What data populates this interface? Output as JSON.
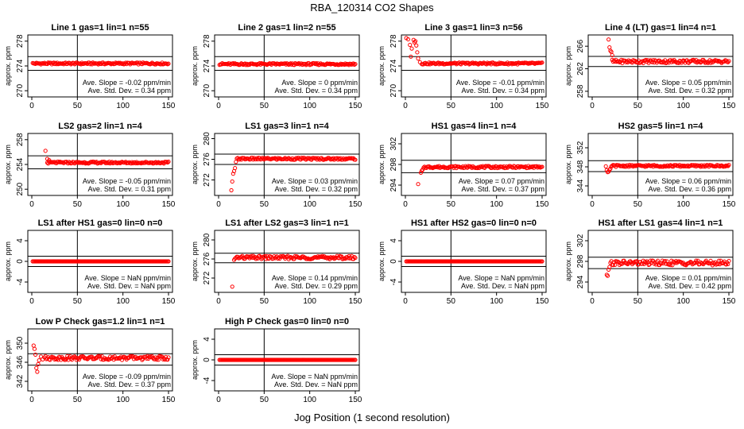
{
  "title": "RBA_120314  CO2 Shapes",
  "xlabel": "Jog Position (1 second resolution)",
  "colors": {
    "points": "#ff0000",
    "axes": "#000000",
    "background": "#ffffff"
  },
  "chart_data": [
    {
      "type": "scatter",
      "title": "Line 1 gas=1 lin=1 n=55",
      "ylabel": "approx. ppm",
      "xlim": [
        0,
        150
      ],
      "ylim": [
        269,
        279
      ],
      "xticks": [
        0,
        50,
        100,
        150
      ],
      "yticks": [
        270,
        274,
        278
      ],
      "hlines": [
        275.5,
        273.3
      ],
      "vline": 50,
      "slope_label": "Ave. Slope = -0.02 ppm/min",
      "sd_label": "Ave. Std. Dev. = 0.34 ppm",
      "series": [
        {
          "name": "CO2",
          "x_start": 1,
          "x_end": 150,
          "base": 274.4,
          "noise": 0.15
        }
      ]
    },
    {
      "type": "scatter",
      "title": "Line 2 gas=1 lin=2 n=55",
      "ylabel": "approx. ppm",
      "xlim": [
        0,
        150
      ],
      "ylim": [
        269,
        279
      ],
      "xticks": [
        0,
        50,
        100,
        150
      ],
      "yticks": [
        270,
        274,
        278
      ],
      "hlines": [
        275.5,
        273.3
      ],
      "vline": 50,
      "slope_label": "Ave. Slope = 0 ppm/min",
      "sd_label": "Ave. Std. Dev. = 0.34 ppm",
      "series": [
        {
          "name": "CO2",
          "x_start": 1,
          "x_end": 150,
          "base": 274.3,
          "noise": 0.15
        }
      ]
    },
    {
      "type": "scatter",
      "title": "Line 3 gas=1 lin=3 n=56",
      "ylabel": "approx. ppm",
      "xlim": [
        0,
        150
      ],
      "ylim": [
        269,
        279
      ],
      "xticks": [
        0,
        50,
        100,
        150
      ],
      "yticks": [
        270,
        274,
        278
      ],
      "hlines": [
        275.5,
        273.3
      ],
      "vline": 50,
      "slope_label": "Ave. Slope = -0.01 ppm/min",
      "sd_label": "Ave. Std. Dev. = 0.34 ppm",
      "series": [
        {
          "name": "CO2",
          "x_start": 18,
          "x_end": 150,
          "base": 274.4,
          "noise": 0.15
        }
      ],
      "extra_points": [
        [
          1,
          278.5
        ],
        [
          3,
          278.3
        ],
        [
          5,
          277.4
        ],
        [
          6,
          275.5
        ],
        [
          7,
          276.8
        ],
        [
          9,
          278.2
        ],
        [
          10,
          277.8
        ],
        [
          11,
          278
        ],
        [
          12,
          277.3
        ],
        [
          13,
          276.2
        ],
        [
          14,
          275.2
        ],
        [
          16,
          274.6
        ]
      ]
    },
    {
      "type": "scatter",
      "title": "Line 4 (LT) gas=1 lin=4 n=1",
      "ylabel": "approx. ppm",
      "xlim": [
        0,
        150
      ],
      "ylim": [
        257,
        268
      ],
      "xticks": [
        0,
        50,
        100,
        150
      ],
      "yticks": [
        258,
        262,
        266
      ],
      "hlines": [
        264.2,
        262.4
      ],
      "vline": 50,
      "slope_label": "Ave. Slope = 0.05 ppm/min",
      "sd_label": "Ave. Std. Dev. = 0.32 ppm",
      "series": [
        {
          "name": "CO2",
          "x_start": 22,
          "x_end": 150,
          "base": 263.3,
          "noise": 0.3
        }
      ],
      "extra_points": [
        [
          18,
          267.2
        ],
        [
          19,
          265.8
        ],
        [
          20,
          265.2
        ],
        [
          21,
          265
        ],
        [
          22,
          264.4
        ]
      ]
    },
    {
      "type": "scatter",
      "title": "LS2 gas=2 lin=1 n=4",
      "ylabel": "approx. ppm",
      "xlim": [
        0,
        150
      ],
      "ylim": [
        249,
        259
      ],
      "xticks": [
        0,
        50,
        100,
        150
      ],
      "yticks": [
        250,
        254,
        258
      ],
      "hlines": [
        255.4,
        253.3
      ],
      "vline": 50,
      "slope_label": "Ave. Slope = -0.05 ppm/min",
      "sd_label": "Ave. Std. Dev. = 0.31 ppm",
      "series": [
        {
          "name": "CO2",
          "x_start": 17,
          "x_end": 150,
          "base": 254.3,
          "noise": 0.15
        }
      ],
      "extra_points": [
        [
          15,
          256.2
        ],
        [
          17,
          254.9
        ],
        [
          19,
          254.7
        ]
      ]
    },
    {
      "type": "scatter",
      "title": "LS1 gas=3 lin=1 n=4",
      "ylabel": "approx. ppm",
      "xlim": [
        0,
        150
      ],
      "ylim": [
        269,
        281
      ],
      "xticks": [
        0,
        50,
        100,
        150
      ],
      "yticks": [
        272,
        276,
        280
      ],
      "hlines": [
        277,
        275
      ],
      "vline": 50,
      "slope_label": "Ave. Slope = 0.03 ppm/min",
      "sd_label": "Ave. Std. Dev. = 0.32 ppm",
      "series": [
        {
          "name": "CO2",
          "x_start": 20,
          "x_end": 150,
          "base": 276.1,
          "noise": 0.2
        }
      ],
      "extra_points": [
        [
          14,
          270
        ],
        [
          15,
          271.7
        ],
        [
          16,
          273.2
        ],
        [
          17,
          273.7
        ],
        [
          18,
          274.3
        ],
        [
          19,
          275.5
        ]
      ]
    },
    {
      "type": "scatter",
      "title": "HS1 gas=4 lin=1 n=4",
      "ylabel": "approx. ppm",
      "xlim": [
        0,
        150
      ],
      "ylim": [
        292,
        304
      ],
      "xticks": [
        0,
        50,
        100,
        150
      ],
      "yticks": [
        294,
        298,
        302
      ],
      "hlines": [
        298.8,
        296.4
      ],
      "vline": 50,
      "slope_label": "Ave. Slope = 0.07 ppm/min",
      "sd_label": "Ave. Std. Dev. = 0.37 ppm",
      "series": [
        {
          "name": "CO2",
          "x_start": 20,
          "x_end": 150,
          "base": 297.5,
          "noise": 0.2
        }
      ],
      "extra_points": [
        [
          14,
          294.2
        ],
        [
          17,
          296.4
        ],
        [
          18,
          296.8
        ],
        [
          19,
          297
        ]
      ]
    },
    {
      "type": "scatter",
      "title": "HS2 gas=5 lin=1 n=4",
      "ylabel": "approx. ppm",
      "xlim": [
        0,
        150
      ],
      "ylim": [
        342,
        355
      ],
      "xticks": [
        0,
        50,
        100,
        150
      ],
      "yticks": [
        344,
        348,
        352
      ],
      "hlines": [
        349.3,
        347
      ],
      "vline": 50,
      "slope_label": "Ave. Slope = 0.06 ppm/min",
      "sd_label": "Ave. Std. Dev. = 0.36 ppm",
      "series": [
        {
          "name": "CO2",
          "x_start": 21,
          "x_end": 150,
          "base": 348.2,
          "noise": 0.2
        }
      ],
      "extra_points": [
        [
          15,
          348.1
        ],
        [
          16,
          347.3
        ],
        [
          17,
          346.9
        ],
        [
          18,
          347
        ],
        [
          19,
          347.4
        ],
        [
          20,
          347.6
        ]
      ]
    },
    {
      "type": "scatter",
      "title": "LS1 after HS1 gas=0 lin=0 n=0",
      "ylabel": "approx. ppm",
      "xlim": [
        0,
        150
      ],
      "ylim": [
        -6,
        6
      ],
      "xticks": [
        0,
        50,
        100,
        150
      ],
      "yticks": [
        -4,
        0,
        4
      ],
      "hlines": [
        1,
        -1
      ],
      "vline": 50,
      "slope_label": "Ave. Slope = NaN ppm/min",
      "sd_label": "Ave. Std. Dev. = NaN ppm",
      "series": [
        {
          "name": "CO2",
          "x_start": 1,
          "x_end": 150,
          "base": 0,
          "noise": 0
        }
      ]
    },
    {
      "type": "scatter",
      "title": "LS1 after LS2 gas=3 lin=1 n=1",
      "ylabel": "approx. ppm",
      "xlim": [
        0,
        150
      ],
      "ylim": [
        269,
        282
      ],
      "xticks": [
        0,
        50,
        100,
        150
      ],
      "yticks": [
        272,
        276,
        280
      ],
      "hlines": [
        277.2,
        275.2
      ],
      "vline": 50,
      "slope_label": "Ave. Slope = 0.14 ppm/min",
      "sd_label": "Ave. Std. Dev. = 0.29 ppm",
      "series": [
        {
          "name": "CO2",
          "x_start": 18,
          "x_end": 150,
          "base": 276.3,
          "noise": 0.35
        }
      ],
      "extra_points": [
        [
          15,
          270.2
        ],
        [
          17,
          275.8
        ]
      ]
    },
    {
      "type": "scatter",
      "title": "HS1 after HS2 gas=0 lin=0 n=0",
      "ylabel": "approx. ppm",
      "xlim": [
        0,
        150
      ],
      "ylim": [
        -6,
        6
      ],
      "xticks": [
        0,
        50,
        100,
        150
      ],
      "yticks": [
        -4,
        0,
        4
      ],
      "hlines": [
        1,
        -1
      ],
      "vline": 50,
      "slope_label": "Ave. Slope = NaN ppm/min",
      "sd_label": "Ave. Std. Dev. = NaN ppm",
      "series": [
        {
          "name": "CO2",
          "x_start": 1,
          "x_end": 150,
          "base": 0,
          "noise": 0
        }
      ]
    },
    {
      "type": "scatter",
      "title": "HS1 after LS1 gas=4 lin=1 n=1",
      "ylabel": "approx. ppm",
      "xlim": [
        0,
        150
      ],
      "ylim": [
        292,
        304
      ],
      "xticks": [
        0,
        50,
        100,
        150
      ],
      "yticks": [
        294,
        298,
        302
      ],
      "hlines": [
        298.8,
        296.6
      ],
      "vline": 50,
      "slope_label": "Ave. Slope = 0.01 ppm/min",
      "sd_label": "Ave. Std. Dev. = 0.42 ppm",
      "series": [
        {
          "name": "CO2",
          "x_start": 20,
          "x_end": 150,
          "base": 297.7,
          "noise": 0.45
        }
      ],
      "extra_points": [
        [
          16,
          295.4
        ],
        [
          17,
          295.2
        ],
        [
          18,
          296.4
        ],
        [
          19,
          296.9
        ]
      ]
    },
    {
      "type": "scatter",
      "title": "Low P Check gas=1.2 lin=1 n=1",
      "ylabel": "approx. ppm",
      "xlim": [
        0,
        150
      ],
      "ylim": [
        340,
        353
      ],
      "xticks": [
        0,
        50,
        100,
        150
      ],
      "yticks": [
        342,
        346,
        350
      ],
      "hlines": [
        347.8,
        345.4
      ],
      "vline": 50,
      "slope_label": "Ave. Slope = -0.09 ppm/min",
      "sd_label": "Ave. Std. Dev. = 0.37 ppm",
      "series": [
        {
          "name": "CO2",
          "x_start": 14,
          "x_end": 150,
          "base": 346.9,
          "noise": 0.4
        }
      ],
      "extra_points": [
        [
          2,
          349.5
        ],
        [
          3,
          348.8
        ],
        [
          4,
          347.6
        ],
        [
          5,
          344.8
        ],
        [
          6,
          344
        ],
        [
          7,
          345.6
        ],
        [
          8,
          346.4
        ],
        [
          10,
          347.2
        ],
        [
          12,
          346.6
        ]
      ]
    },
    {
      "type": "scatter",
      "title": "High P Check gas=0 lin=0 n=0",
      "ylabel": "approx. ppm",
      "xlim": [
        0,
        150
      ],
      "ylim": [
        -6,
        6
      ],
      "xticks": [
        0,
        50,
        100,
        150
      ],
      "yticks": [
        -4,
        0,
        4
      ],
      "hlines": [
        1,
        -1
      ],
      "vline": 50,
      "slope_label": "Ave. Slope = NaN ppm/min",
      "sd_label": "Ave. Std. Dev. = NaN ppm",
      "series": [
        {
          "name": "CO2",
          "x_start": 1,
          "x_end": 150,
          "base": 0,
          "noise": 0
        }
      ]
    }
  ]
}
